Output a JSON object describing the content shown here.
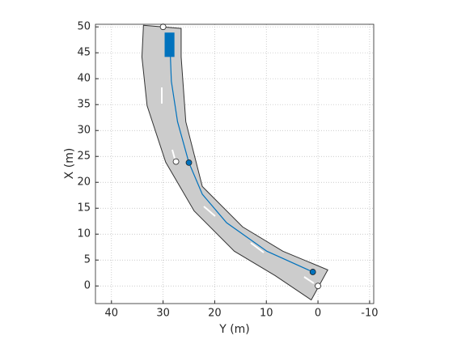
{
  "chart_data": {
    "type": "line",
    "xlabel": "Y (m)",
    "ylabel": "X (m)",
    "xlim": [
      43.1,
      -10.8
    ],
    "ylim": [
      -3.4,
      50.5
    ],
    "xticks": [
      40,
      30,
      20,
      10,
      0,
      -10
    ],
    "yticks": [
      0,
      5,
      10,
      15,
      20,
      25,
      30,
      35,
      40,
      45,
      50
    ],
    "grid": true,
    "road": {
      "color": "#cccccc",
      "x": [
        33.8,
        26.5,
        26.5,
        25.6,
        22.4,
        14.6,
        6.8,
        -1.9,
        1.3,
        8.3,
        16.2,
        24,
        29.5,
        33.1,
        34.1
      ],
      "values": [
        50.3,
        49.7,
        44.2,
        31.7,
        19.2,
        11.4,
        6.7,
        3.1,
        -2.7,
        2,
        6.7,
        14.5,
        23.9,
        34.8,
        44.2
      ]
    },
    "series": [
      {
        "color": "#0072bd",
        "x": [
          1,
          9.9,
          17.7,
          22.4,
          25,
          27.2,
          28.4,
          28.7
        ],
        "values": [
          2.7,
          6.7,
          12.2,
          17.7,
          23.8,
          31.7,
          39.5,
          47.3
        ]
      }
    ],
    "waypoints": {
      "color": "#0072bd",
      "x": [
        1,
        25
      ],
      "values": [
        2.7,
        23.8
      ]
    },
    "markers": {
      "color": "#ffffff",
      "x": [
        0,
        27.5,
        30
      ],
      "values": [
        0,
        24,
        50
      ]
    },
    "vehicle": {
      "color": "#0072bd",
      "x": [
        29.7,
        27.8
      ],
      "values": [
        44.2,
        48.9
      ]
    }
  }
}
